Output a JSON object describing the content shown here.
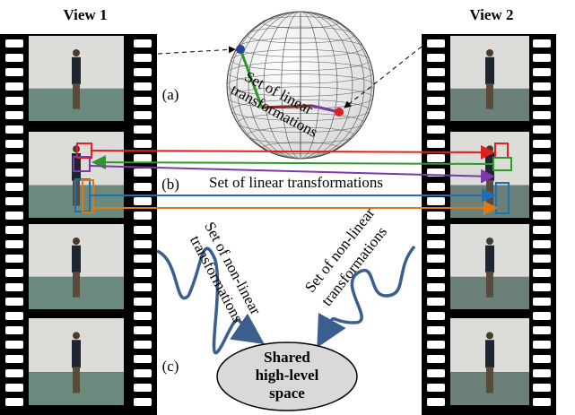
{
  "views": [
    {
      "title": "View 1"
    },
    {
      "title": "View 2"
    }
  ],
  "labels": {
    "a": "(a)",
    "b": "(b)",
    "c": "(c)"
  },
  "sphere_caption": [
    "Set of linear",
    "transformations"
  ],
  "linear_caption": "Set of linear transformations",
  "nonlinear_captions": [
    [
      "Set of non-linear",
      "transformations"
    ],
    [
      "Set of non-linear",
      "transformations"
    ]
  ],
  "shared_space": [
    "Shared",
    "high-level",
    "space"
  ]
}
